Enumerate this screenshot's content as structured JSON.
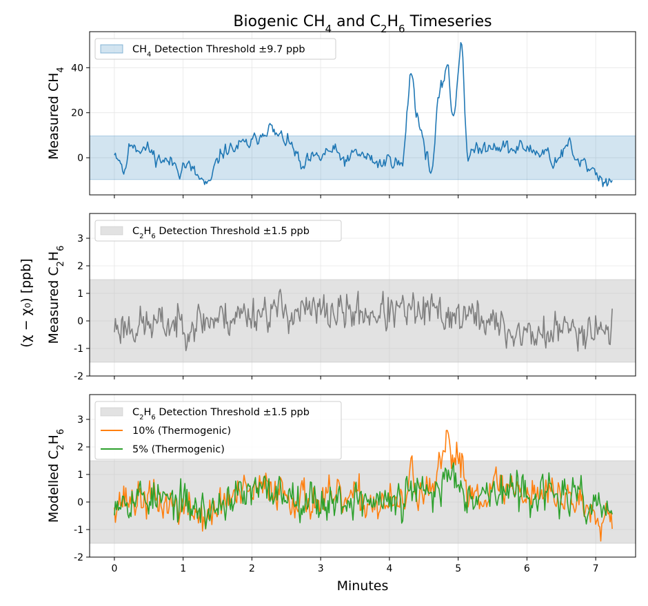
{
  "chart_data": {
    "type": "line",
    "title": "Biogenic CH$_4$ and C$_2$H$_6$ Timeseries",
    "title_parts": [
      [
        "Biogenic CH",
        ""
      ],
      [
        "4",
        "sub"
      ],
      [
        " and C",
        ""
      ],
      [
        "2",
        "sub"
      ],
      [
        "H",
        ""
      ],
      [
        "6",
        "sub"
      ],
      [
        " Timeseries",
        ""
      ]
    ],
    "shared_ylabel": "(χ − χ₀) [ppb]",
    "xlabel": "Minutes",
    "xlim": [
      -0.36,
      7.58
    ],
    "xticks": [
      0,
      1,
      2,
      3,
      4,
      5,
      6,
      7
    ],
    "colors": {
      "ch4": "#1f77b4",
      "c2h6_measured": "#7f7f7f",
      "thermo_10": "#ff7f0e",
      "thermo_5": "#2ca02c",
      "ch4_band": "#1f77b4",
      "c2h6_band": "#bfbfbf"
    },
    "panels": [
      {
        "ylabel_parts": [
          [
            "Measured CH",
            ""
          ],
          [
            "4",
            "sub"
          ]
        ],
        "ylim": [
          -16.5,
          56
        ],
        "yticks": [
          0,
          20,
          40
        ],
        "threshold": 9.7,
        "legend": [
          {
            "kind": "patch",
            "color": "#1f77b4",
            "parts": [
              [
                "CH",
                ""
              ],
              [
                "4",
                "sub"
              ],
              [
                " Detection Threshold ±9.7 ppb",
                ""
              ]
            ]
          }
        ],
        "series": [
          {
            "color": "#1f77b4",
            "anchors": [
              [
                0.0,
                3
              ],
              [
                0.1,
                -2
              ],
              [
                0.15,
                -8
              ],
              [
                0.2,
                3
              ],
              [
                0.25,
                7
              ],
              [
                0.35,
                4
              ],
              [
                0.5,
                4
              ],
              [
                0.6,
                0
              ],
              [
                0.8,
                -2
              ],
              [
                0.9,
                -3
              ],
              [
                0.95,
                -6
              ],
              [
                1.0,
                -3
              ],
              [
                1.1,
                -4
              ],
              [
                1.2,
                -8
              ],
              [
                1.3,
                -11
              ],
              [
                1.38,
                -13
              ],
              [
                1.45,
                -5
              ],
              [
                1.55,
                2
              ],
              [
                1.65,
                4
              ],
              [
                1.75,
                4
              ],
              [
                1.85,
                6
              ],
              [
                1.95,
                6
              ],
              [
                2.05,
                8
              ],
              [
                2.15,
                11
              ],
              [
                2.25,
                14
              ],
              [
                2.35,
                10
              ],
              [
                2.45,
                9
              ],
              [
                2.55,
                6
              ],
              [
                2.65,
                2
              ],
              [
                2.72,
                -6
              ],
              [
                2.8,
                -2
              ],
              [
                2.9,
                0
              ],
              [
                3.0,
                0
              ],
              [
                3.1,
                3
              ],
              [
                3.2,
                3
              ],
              [
                3.3,
                0
              ],
              [
                3.4,
                -2
              ],
              [
                3.5,
                3
              ],
              [
                3.6,
                1
              ],
              [
                3.7,
                0
              ],
              [
                3.8,
                -2
              ],
              [
                3.9,
                -3
              ],
              [
                4.0,
                0
              ],
              [
                4.1,
                -2
              ],
              [
                4.2,
                -4
              ],
              [
                4.25,
                18
              ],
              [
                4.3,
                36
              ],
              [
                4.34,
                38
              ],
              [
                4.38,
                22
              ],
              [
                4.45,
                14
              ],
              [
                4.5,
                6
              ],
              [
                4.55,
                0
              ],
              [
                4.62,
                -7
              ],
              [
                4.67,
                10
              ],
              [
                4.7,
                24
              ],
              [
                4.75,
                30
              ],
              [
                4.8,
                36
              ],
              [
                4.85,
                45
              ],
              [
                4.88,
                30
              ],
              [
                4.92,
                16
              ],
              [
                4.96,
                22
              ],
              [
                5.0,
                40
              ],
              [
                5.04,
                53
              ],
              [
                5.07,
                45
              ],
              [
                5.1,
                18
              ],
              [
                5.14,
                0
              ],
              [
                5.2,
                3
              ],
              [
                5.3,
                3
              ],
              [
                5.4,
                5
              ],
              [
                5.5,
                6
              ],
              [
                5.6,
                5
              ],
              [
                5.7,
                5
              ],
              [
                5.8,
                3
              ],
              [
                5.9,
                5
              ],
              [
                6.0,
                4
              ],
              [
                6.1,
                3
              ],
              [
                6.2,
                2
              ],
              [
                6.3,
                4
              ],
              [
                6.35,
                -3
              ],
              [
                6.45,
                0
              ],
              [
                6.55,
                3
              ],
              [
                6.6,
                8
              ],
              [
                6.65,
                4
              ],
              [
                6.7,
                -2
              ],
              [
                6.8,
                -2
              ],
              [
                6.9,
                -4
              ],
              [
                7.0,
                -6
              ],
              [
                7.1,
                -10
              ],
              [
                7.15,
                -12
              ],
              [
                7.2,
                -9
              ],
              [
                7.24,
                -9
              ]
            ],
            "noise": 2.2,
            "seed": 11
          }
        ]
      },
      {
        "ylabel_parts": [
          [
            "Measured C",
            ""
          ],
          [
            "2",
            "sub"
          ],
          [
            "H",
            ""
          ],
          [
            "6",
            "sub"
          ]
        ],
        "ylim": [
          -2,
          3.9
        ],
        "yticks": [
          -2,
          -1,
          0,
          1,
          2,
          3
        ],
        "threshold": 1.5,
        "legend": [
          {
            "kind": "patch",
            "color": "#bfbfbf",
            "parts": [
              [
                "C",
                ""
              ],
              [
                "2",
                "sub"
              ],
              [
                "H",
                ""
              ],
              [
                "6",
                "sub"
              ],
              [
                " Detection Threshold ±1.5 ppb",
                ""
              ]
            ]
          }
        ],
        "series": [
          {
            "color": "#7f7f7f",
            "anchors": [
              [
                0.0,
                -0.2
              ],
              [
                1.0,
                -0.1
              ],
              [
                1.8,
                0.2
              ],
              [
                2.2,
                0.4
              ],
              [
                3.0,
                0.3
              ],
              [
                3.8,
                0.3
              ],
              [
                4.6,
                0.3
              ],
              [
                5.4,
                0.1
              ],
              [
                5.7,
                -0.4
              ],
              [
                6.2,
                -0.5
              ],
              [
                6.6,
                -0.3
              ],
              [
                7.0,
                -0.2
              ],
              [
                7.24,
                -0.3
              ]
            ],
            "noise": 0.5,
            "seed": 23,
            "clip": [
              -1.85,
              1.25
            ]
          }
        ]
      },
      {
        "ylabel_parts": [
          [
            "Modelled C",
            ""
          ],
          [
            "2",
            "sub"
          ],
          [
            "H",
            ""
          ],
          [
            "6",
            "sub"
          ]
        ],
        "ylim": [
          -2,
          3.9
        ],
        "yticks": [
          -2,
          -1,
          0,
          1,
          2,
          3
        ],
        "threshold": 1.5,
        "legend": [
          {
            "kind": "patch",
            "color": "#bfbfbf",
            "parts": [
              [
                "C",
                ""
              ],
              [
                "2",
                "sub"
              ],
              [
                "H",
                ""
              ],
              [
                "6",
                "sub"
              ],
              [
                " Detection Threshold ±1.5 ppb",
                ""
              ]
            ]
          },
          {
            "kind": "line",
            "color": "#ff7f0e",
            "parts": [
              [
                "10% (Thermogenic)",
                ""
              ]
            ]
          },
          {
            "kind": "line",
            "color": "#2ca02c",
            "parts": [
              [
                "5% (Thermogenic)",
                ""
              ]
            ]
          }
        ],
        "series": [
          {
            "color": "#ff7f0e",
            "anchors": [
              [
                0.0,
                0.1
              ],
              [
                0.5,
                0.1
              ],
              [
                1.0,
                -0.2
              ],
              [
                1.4,
                -0.6
              ],
              [
                1.6,
                0.1
              ],
              [
                2.0,
                0.3
              ],
              [
                2.3,
                0.6
              ],
              [
                2.6,
                0.2
              ],
              [
                3.0,
                0.0
              ],
              [
                3.5,
                0.1
              ],
              [
                4.0,
                -0.1
              ],
              [
                4.2,
                -0.2
              ],
              [
                4.3,
                1.1
              ],
              [
                4.4,
                0.5
              ],
              [
                4.6,
                0.1
              ],
              [
                4.75,
                1.2
              ],
              [
                4.85,
                2.2
              ],
              [
                4.95,
                1.6
              ],
              [
                5.05,
                1.7
              ],
              [
                5.12,
                0.5
              ],
              [
                5.3,
                0.3
              ],
              [
                5.6,
                0.6
              ],
              [
                6.0,
                0.4
              ],
              [
                6.4,
                0.3
              ],
              [
                6.6,
                0.2
              ],
              [
                7.0,
                -0.3
              ],
              [
                7.24,
                -0.4
              ]
            ],
            "noise": 0.5,
            "seed": 37,
            "clip": [
              -1.75,
              2.6
            ]
          },
          {
            "color": "#2ca02c",
            "anchors": [
              [
                0.0,
                0.2
              ],
              [
                0.5,
                0.2
              ],
              [
                1.0,
                -0.1
              ],
              [
                1.4,
                -0.4
              ],
              [
                1.6,
                0.1
              ],
              [
                2.0,
                0.3
              ],
              [
                2.3,
                0.4
              ],
              [
                2.6,
                0.3
              ],
              [
                3.0,
                0.0
              ],
              [
                3.5,
                0.1
              ],
              [
                4.0,
                0.0
              ],
              [
                4.2,
                -0.1
              ],
              [
                4.3,
                0.6
              ],
              [
                4.4,
                0.3
              ],
              [
                4.6,
                0.2
              ],
              [
                4.75,
                0.6
              ],
              [
                4.85,
                1.1
              ],
              [
                4.95,
                0.9
              ],
              [
                5.05,
                0.9
              ],
              [
                5.12,
                0.3
              ],
              [
                5.3,
                0.3
              ],
              [
                5.6,
                0.4
              ],
              [
                6.0,
                0.3
              ],
              [
                6.4,
                0.3
              ],
              [
                6.6,
                0.2
              ],
              [
                7.0,
                -0.2
              ],
              [
                7.24,
                -0.3
              ]
            ],
            "noise": 0.5,
            "seed": 53,
            "clip": [
              -1.6,
              1.9
            ]
          }
        ]
      }
    ]
  }
}
